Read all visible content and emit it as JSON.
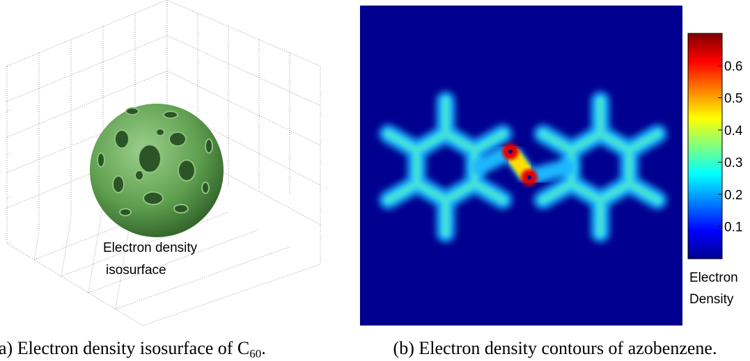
{
  "left_panel": {
    "annotation_line1": "Electron density",
    "annotation_line2": "isosurface",
    "caption": {
      "text": "a) Electron density isosurface of C",
      "subscript": "60",
      "end": "."
    }
  },
  "right_panel": {
    "colorbar": {
      "lim": [
        0,
        0.7
      ],
      "ticks": [
        0.1,
        0.2,
        0.3,
        0.4,
        0.5,
        0.6
      ],
      "label_line1": "Electron",
      "label_line2": "Density"
    },
    "caption": "(b) Electron density contours of azobenzene."
  }
}
